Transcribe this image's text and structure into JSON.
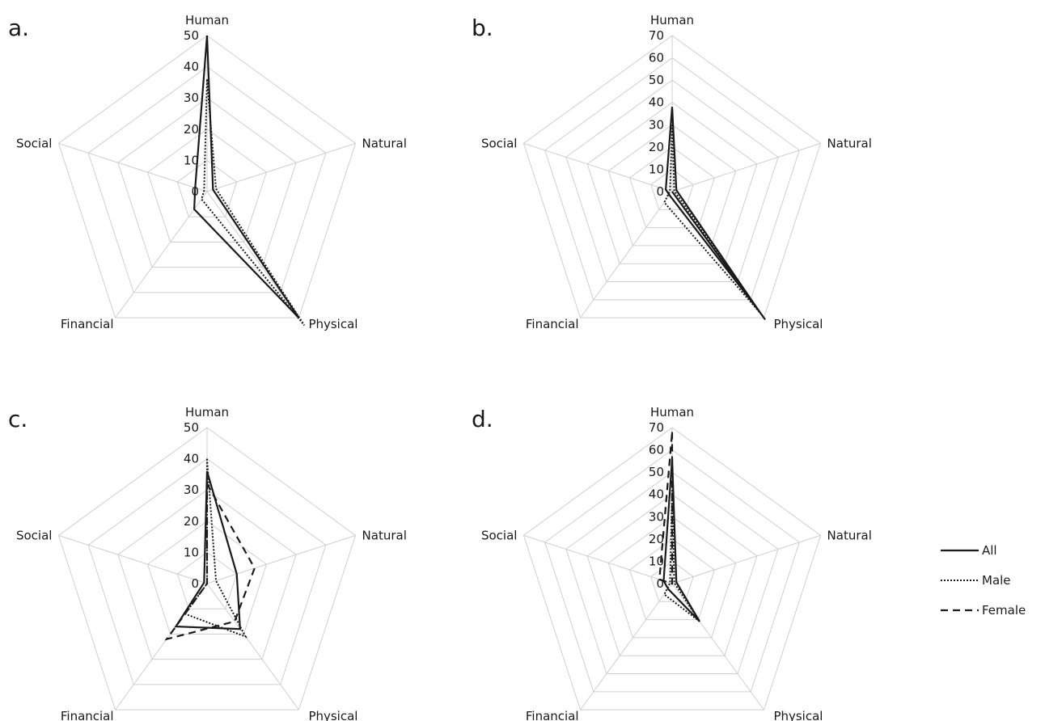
{
  "chart_data": [
    {
      "panel": "a.",
      "type": "radar",
      "axes": [
        "Human",
        "Natural",
        "Physical",
        "Financial",
        "Social"
      ],
      "ticks": [
        "0",
        "10",
        "20",
        "30",
        "40",
        "50"
      ],
      "rmax": 50,
      "series": [
        {
          "name": "All",
          "style": "solid",
          "values": [
            50,
            2,
            50,
            7,
            4
          ]
        },
        {
          "name": "Male",
          "style": "dotted",
          "values": [
            36,
            3,
            53,
            3,
            1
          ]
        }
      ]
    },
    {
      "panel": "b.",
      "type": "radar",
      "axes": [
        "Human",
        "Natural",
        "Physical",
        "Financial",
        "Social"
      ],
      "ticks": [
        "0",
        "10",
        "20",
        "30",
        "40",
        "50",
        "60",
        "70"
      ],
      "rmax": 70,
      "series": [
        {
          "name": "All",
          "style": "solid",
          "values": [
            38,
            2,
            67,
            2,
            3
          ]
        },
        {
          "name": "Male",
          "style": "dotted",
          "values": [
            30,
            1,
            68,
            6,
            1
          ]
        },
        {
          "name": "Female",
          "style": "dashed",
          "values": [
            0,
            0,
            71,
            0,
            0
          ]
        }
      ]
    },
    {
      "panel": "c.",
      "type": "radar",
      "axes": [
        "Human",
        "Natural",
        "Physical",
        "Financial",
        "Social"
      ],
      "ticks": [
        "0",
        "10",
        "20",
        "30",
        "40",
        "50"
      ],
      "rmax": 50,
      "series": [
        {
          "name": "All",
          "style": "solid",
          "values": [
            36,
            10,
            18,
            17,
            1
          ]
        },
        {
          "name": "Male",
          "style": "dotted",
          "values": [
            40,
            3,
            21,
            12,
            0
          ]
        },
        {
          "name": "Female",
          "style": "dashed",
          "values": [
            32,
            16,
            15,
            22,
            0
          ]
        }
      ]
    },
    {
      "panel": "d.",
      "type": "radar",
      "axes": [
        "Human",
        "Natural",
        "Physical",
        "Financial",
        "Social"
      ],
      "ticks": [
        "0",
        "10",
        "20",
        "30",
        "40",
        "50",
        "60",
        "70"
      ],
      "rmax": 70,
      "series": [
        {
          "name": "All",
          "style": "solid",
          "values": [
            56,
            2,
            21,
            3,
            4
          ]
        },
        {
          "name": "Male",
          "style": "dotted",
          "values": [
            42,
            1,
            21,
            6,
            1
          ]
        },
        {
          "name": "Female",
          "style": "dashed",
          "values": [
            68,
            0,
            0,
            0,
            6
          ]
        }
      ]
    }
  ],
  "legend": [
    {
      "label": "All",
      "style": "solid"
    },
    {
      "label": "Male",
      "style": "dotted"
    },
    {
      "label": "Female",
      "style": "dashed"
    }
  ]
}
